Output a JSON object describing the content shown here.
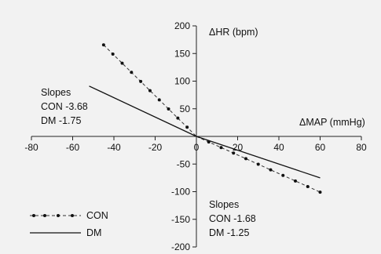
{
  "chart_data": {
    "type": "line",
    "xlabel": "ΔMAP (mmHg)",
    "ylabel": "ΔHR (bpm)",
    "xlim": [
      -80,
      80
    ],
    "ylim": [
      -200,
      200
    ],
    "x_ticks": [
      -80,
      -60,
      -40,
      -20,
      0,
      20,
      40,
      60,
      80
    ],
    "y_ticks": [
      200,
      150,
      100,
      50,
      0,
      -50,
      -100,
      -150,
      -200
    ],
    "grid": false,
    "series": [
      {
        "name": "CON",
        "style": "dashed-dotted",
        "segments": [
          {
            "x": [
              -45,
              -40.5,
              -36,
              -31.5,
              -27,
              -22.5,
              -18,
              -13.5,
              -9,
              -4.5,
              0
            ],
            "y": [
              165.6,
              149.0,
              132.5,
              115.9,
              99.4,
              82.8,
              66.2,
              49.7,
              33.1,
              16.6,
              0
            ]
          },
          {
            "x": [
              0,
              6,
              12,
              18,
              24,
              30,
              36,
              42,
              48,
              54,
              60
            ],
            "y": [
              0,
              -10.1,
              -20.2,
              -30.2,
              -40.3,
              -50.4,
              -60.5,
              -70.6,
              -80.6,
              -90.7,
              -100.8
            ]
          }
        ]
      },
      {
        "name": "DM",
        "style": "solid",
        "segments": [
          {
            "x": [
              -52,
              0
            ],
            "y": [
              91,
              0
            ]
          },
          {
            "x": [
              0,
              60
            ],
            "y": [
              0,
              -75
            ]
          }
        ]
      }
    ],
    "annotations": [
      {
        "lines": [
          "Slopes",
          "CON -3.68",
          "DM -1.75"
        ],
        "region": "upper-left"
      },
      {
        "lines": [
          "Slopes",
          "CON -1.68",
          "DM -1.25"
        ],
        "region": "lower-right"
      }
    ],
    "legend": {
      "placement": "bottom-left",
      "entries": [
        "CON",
        "DM"
      ]
    }
  }
}
